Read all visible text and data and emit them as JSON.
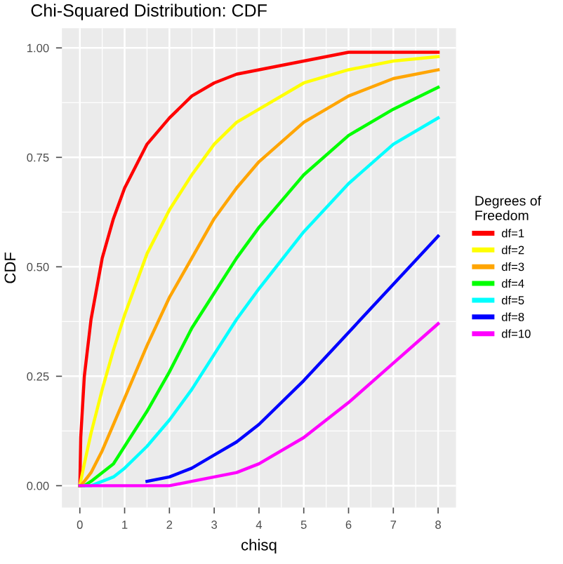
{
  "chart_data": {
    "type": "line",
    "title": "Chi-Squared Distribution: CDF",
    "xlabel": "chisq",
    "ylabel": "CDF",
    "legend_title": "Degrees of\nFreedom",
    "x": [
      0,
      0.02,
      0.1,
      0.25,
      0.5,
      0.75,
      1,
      1.5,
      2,
      2.5,
      3,
      3.5,
      4,
      5,
      6,
      7,
      8
    ],
    "series": [
      {
        "name": "df=1",
        "color": "#ff0000",
        "values": [
          0,
          0.11,
          0.25,
          0.38,
          0.52,
          0.61,
          0.68,
          0.78,
          0.84,
          0.89,
          0.92,
          0.94,
          0.95,
          0.97,
          0.99,
          0.99,
          0.99
        ]
      },
      {
        "name": "df=2",
        "color": "#ffff00",
        "values": [
          0,
          0.01,
          0.05,
          0.12,
          0.22,
          0.31,
          0.39,
          0.53,
          0.63,
          0.71,
          0.78,
          0.83,
          0.86,
          0.92,
          0.95,
          0.97,
          0.98
        ]
      },
      {
        "name": "df=3",
        "color": "#ffa500",
        "values": [
          0,
          0,
          0.01,
          0.03,
          0.08,
          0.14,
          0.2,
          0.32,
          0.43,
          0.52,
          0.61,
          0.68,
          0.74,
          0.83,
          0.89,
          0.93,
          0.95
        ]
      },
      {
        "name": "df=4",
        "color": "#00ff00",
        "values": [
          0,
          0,
          0,
          0.01,
          0.03,
          0.05,
          0.09,
          0.17,
          0.26,
          0.36,
          0.44,
          0.52,
          0.59,
          0.71,
          0.8,
          0.86,
          0.91
        ]
      },
      {
        "name": "df=5",
        "color": "#00ffff",
        "values": [
          null,
          null,
          0,
          0,
          0.01,
          0.02,
          0.04,
          0.09,
          0.15,
          0.22,
          0.3,
          0.38,
          0.45,
          0.58,
          0.69,
          0.78,
          0.84
        ]
      },
      {
        "name": "df=8",
        "color": "#0000ff",
        "values": [
          null,
          null,
          null,
          null,
          null,
          null,
          null,
          0.01,
          0.02,
          0.04,
          0.07,
          0.1,
          0.14,
          0.24,
          0.35,
          0.46,
          0.57
        ]
      },
      {
        "name": "df=10",
        "color": "#ff00ff",
        "values": [
          0,
          0,
          0,
          0,
          0,
          0,
          0,
          0,
          0,
          0.01,
          0.02,
          0.03,
          0.05,
          0.11,
          0.19,
          0.28,
          0.37
        ]
      }
    ],
    "xlim": [
      -0.4,
      8.4
    ],
    "xticks": [
      0,
      1,
      2,
      3,
      4,
      5,
      6,
      7,
      8
    ],
    "ylim": [
      -0.05,
      1.045
    ],
    "yticks": [
      {
        "value": 0,
        "label": "0.00"
      },
      {
        "value": 0.25,
        "label": "0.25"
      },
      {
        "value": 0.5,
        "label": "0.50"
      },
      {
        "value": 0.75,
        "label": "0.75"
      },
      {
        "value": 1,
        "label": "1.00"
      }
    ],
    "grid": true,
    "legend": "right",
    "line_style": "solid",
    "marker": "none"
  }
}
